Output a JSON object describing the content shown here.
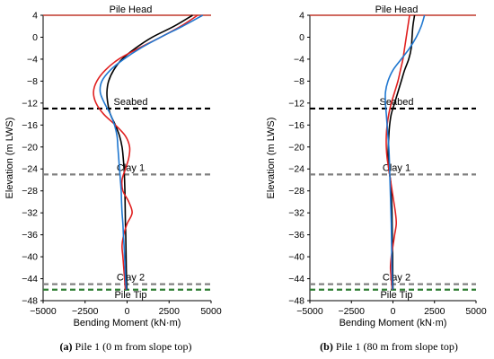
{
  "chart_data": [
    {
      "type": "line",
      "caption_letter": "(a)",
      "caption_text": " Pile 1 (0 m from slope top)",
      "xlabel": "Bending Moment (kN·m)",
      "ylabel": "Elevation (m LWS)",
      "xlim": [
        -5000,
        5000
      ],
      "ylim": [
        -48,
        4
      ],
      "x_ticks": [
        "−5000",
        "−2500",
        "0",
        "2500",
        "5000"
      ],
      "y_ticks": [
        "4",
        "0",
        "−4",
        "−8",
        "−12",
        "−16",
        "−20",
        "−24",
        "−28",
        "−32",
        "−36",
        "−40",
        "−44",
        "−48"
      ],
      "grid": false,
      "annotations": [
        {
          "text": "Pile Head",
          "elevation": 4,
          "line_color": "#c0392b",
          "dashed": false
        },
        {
          "text": "Seabed",
          "elevation": -13,
          "line_color": "#000000",
          "dashed": true
        },
        {
          "text": "Clay 1",
          "elevation": -25,
          "line_color": "#808080",
          "dashed": true
        },
        {
          "text": "Clay 2",
          "elevation": -45,
          "line_color": "#808080",
          "dashed": true
        },
        {
          "text": "Pile Tip",
          "elevation": -46,
          "line_color": "#2e7d32",
          "dashed": true
        }
      ],
      "series": [
        {
          "color": "#000000",
          "points": [
            [
              3900,
              4
            ],
            [
              2800,
              2
            ],
            [
              1500,
              0
            ],
            [
              500,
              -2
            ],
            [
              -300,
              -4
            ],
            [
              -800,
              -6
            ],
            [
              -1100,
              -8
            ],
            [
              -1200,
              -10
            ],
            [
              -1150,
              -12
            ],
            [
              -1000,
              -14
            ],
            [
              -700,
              -16
            ],
            [
              -450,
              -18
            ],
            [
              -300,
              -20
            ],
            [
              -230,
              -22
            ],
            [
              -180,
              -24
            ],
            [
              -150,
              -26
            ],
            [
              -130,
              -28
            ],
            [
              -120,
              -30
            ],
            [
              -110,
              -32
            ],
            [
              -100,
              -34
            ],
            [
              -80,
              -36
            ],
            [
              -70,
              -38
            ],
            [
              -60,
              -40
            ],
            [
              -50,
              -42
            ],
            [
              -30,
              -44
            ],
            [
              -10,
              -46
            ]
          ]
        },
        {
          "color": "#e02020",
          "points": [
            [
              4200,
              4
            ],
            [
              3200,
              2
            ],
            [
              2000,
              0
            ],
            [
              700,
              -2
            ],
            [
              -500,
              -4
            ],
            [
              -1300,
              -6
            ],
            [
              -1800,
              -8
            ],
            [
              -2000,
              -10
            ],
            [
              -1850,
              -12
            ],
            [
              -1400,
              -14
            ],
            [
              -700,
              -16
            ],
            [
              -100,
              -18
            ],
            [
              150,
              -20
            ],
            [
              100,
              -22
            ],
            [
              -100,
              -24
            ],
            [
              -300,
              -26
            ],
            [
              -250,
              -28
            ],
            [
              100,
              -30
            ],
            [
              300,
              -32
            ],
            [
              0,
              -34
            ],
            [
              -200,
              -36
            ],
            [
              -300,
              -38
            ],
            [
              -250,
              -40
            ],
            [
              -200,
              -42
            ],
            [
              -150,
              -44
            ],
            [
              -100,
              -46
            ]
          ]
        },
        {
          "color": "#1f77d0",
          "points": [
            [
              4500,
              4
            ],
            [
              3300,
              2
            ],
            [
              2000,
              0
            ],
            [
              800,
              -2
            ],
            [
              -200,
              -4
            ],
            [
              -1000,
              -6
            ],
            [
              -1500,
              -8
            ],
            [
              -1600,
              -10
            ],
            [
              -1350,
              -12
            ],
            [
              -1000,
              -14
            ],
            [
              -750,
              -16
            ],
            [
              -600,
              -18
            ],
            [
              -550,
              -20
            ],
            [
              -500,
              -22
            ],
            [
              -450,
              -24
            ],
            [
              -400,
              -26
            ],
            [
              -350,
              -28
            ],
            [
              -330,
              -30
            ],
            [
              -300,
              -32
            ],
            [
              -250,
              -34
            ],
            [
              -220,
              -36
            ],
            [
              -180,
              -38
            ],
            [
              -150,
              -40
            ],
            [
              -120,
              -42
            ],
            [
              -90,
              -44
            ],
            [
              -40,
              -46
            ]
          ]
        }
      ]
    },
    {
      "type": "line",
      "caption_letter": "(b)",
      "caption_text": " Pile 1 (80 m from slope top)",
      "xlabel": "Bending Moment (kN·m)",
      "ylabel": "Elevation (m LWS)",
      "xlim": [
        -5000,
        5000
      ],
      "ylim": [
        -48,
        4
      ],
      "x_ticks": [
        "−5000",
        "−2500",
        "0",
        "2500",
        "5000"
      ],
      "y_ticks": [
        "4",
        "0",
        "−4",
        "−8",
        "−12",
        "−16",
        "−20",
        "−24",
        "−28",
        "−32",
        "−36",
        "−40",
        "−44",
        "−48"
      ],
      "grid": false,
      "annotations": [
        {
          "text": "Pile Head",
          "elevation": 4,
          "line_color": "#c0392b",
          "dashed": false
        },
        {
          "text": "Seabed",
          "elevation": -13,
          "line_color": "#000000",
          "dashed": true
        },
        {
          "text": "Clay 1",
          "elevation": -25,
          "line_color": "#808080",
          "dashed": true
        },
        {
          "text": "Clay 2",
          "elevation": -45,
          "line_color": "#808080",
          "dashed": true
        },
        {
          "text": "Pile Tip",
          "elevation": -46,
          "line_color": "#2e7d32",
          "dashed": true
        }
      ],
      "series": [
        {
          "color": "#000000",
          "points": [
            [
              1300,
              4
            ],
            [
              1200,
              2
            ],
            [
              1150,
              0
            ],
            [
              1100,
              -2
            ],
            [
              950,
              -4
            ],
            [
              700,
              -6
            ],
            [
              500,
              -8
            ],
            [
              300,
              -10
            ],
            [
              100,
              -12
            ],
            [
              -100,
              -14
            ],
            [
              -200,
              -16
            ],
            [
              -250,
              -18
            ],
            [
              -280,
              -20
            ],
            [
              -300,
              -22
            ],
            [
              -250,
              -24
            ],
            [
              -150,
              -26
            ],
            [
              -100,
              -28
            ],
            [
              -80,
              -30
            ],
            [
              -60,
              -32
            ],
            [
              -50,
              -34
            ],
            [
              -40,
              -36
            ],
            [
              -30,
              -38
            ],
            [
              -20,
              -40
            ],
            [
              -15,
              -42
            ],
            [
              -10,
              -44
            ],
            [
              0,
              -46
            ]
          ]
        },
        {
          "color": "#e02020",
          "points": [
            [
              1000,
              4
            ],
            [
              900,
              2
            ],
            [
              800,
              0
            ],
            [
              700,
              -2
            ],
            [
              600,
              -4
            ],
            [
              450,
              -6
            ],
            [
              300,
              -8
            ],
            [
              100,
              -10
            ],
            [
              -100,
              -12
            ],
            [
              -250,
              -14
            ],
            [
              -350,
              -16
            ],
            [
              -400,
              -18
            ],
            [
              -400,
              -20
            ],
            [
              -350,
              -22
            ],
            [
              -250,
              -24
            ],
            [
              -150,
              -26
            ],
            [
              -50,
              -28
            ],
            [
              50,
              -30
            ],
            [
              150,
              -32
            ],
            [
              200,
              -34
            ],
            [
              100,
              -36
            ],
            [
              0,
              -38
            ],
            [
              -100,
              -40
            ],
            [
              -150,
              -42
            ],
            [
              -100,
              -44
            ],
            [
              -50,
              -46
            ]
          ]
        },
        {
          "color": "#1f77d0",
          "points": [
            [
              1900,
              4
            ],
            [
              1700,
              2
            ],
            [
              1400,
              0
            ],
            [
              1000,
              -2
            ],
            [
              500,
              -4
            ],
            [
              0,
              -6
            ],
            [
              -300,
              -8
            ],
            [
              -450,
              -10
            ],
            [
              -450,
              -12
            ],
            [
              -400,
              -14
            ],
            [
              -350,
              -16
            ],
            [
              -300,
              -18
            ],
            [
              -250,
              -20
            ],
            [
              -220,
              -22
            ],
            [
              -200,
              -24
            ],
            [
              -180,
              -26
            ],
            [
              -160,
              -28
            ],
            [
              -140,
              -30
            ],
            [
              -120,
              -32
            ],
            [
              -100,
              -34
            ],
            [
              -90,
              -36
            ],
            [
              -80,
              -38
            ],
            [
              -70,
              -40
            ],
            [
              -60,
              -42
            ],
            [
              -40,
              -44
            ],
            [
              -20,
              -46
            ]
          ]
        }
      ]
    }
  ]
}
